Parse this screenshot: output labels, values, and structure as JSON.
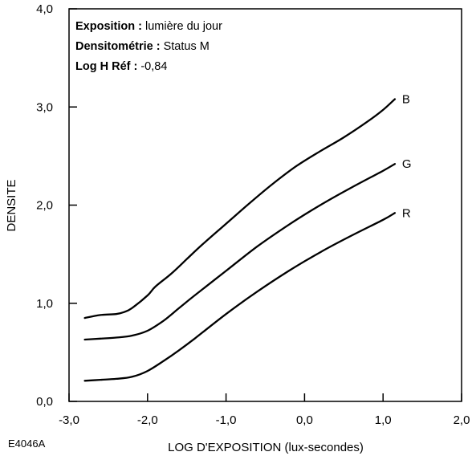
{
  "chart_data": {
    "type": "line",
    "xlabel": "LOG D'EXPOSITION (lux-secondes)",
    "ylabel": "DENSITE",
    "xlim": [
      -3.0,
      2.0
    ],
    "ylim": [
      0.0,
      4.0
    ],
    "x_ticks": [
      -3.0,
      -2.0,
      -1.0,
      0.0,
      1.0,
      2.0
    ],
    "y_ticks": [
      0.0,
      1.0,
      2.0,
      3.0,
      4.0
    ],
    "x_tick_labels": [
      "-3,0",
      "-2,0",
      "-1,0",
      "0,0",
      "1,0",
      "2,0"
    ],
    "y_tick_labels": [
      "0,0",
      "1,0",
      "2,0",
      "3,0",
      "4,0"
    ],
    "grid": false,
    "legend": "none",
    "annotations": [
      {
        "key": "Exposition :",
        "value": " lumière du jour"
      },
      {
        "key": "Densitométrie :",
        "value": " Status M"
      },
      {
        "key": "Log H Réf :",
        "value": " -0,84"
      }
    ],
    "figure_code": "E4046A",
    "series": [
      {
        "name": "B",
        "x": [
          -2.8,
          -2.6,
          -2.4,
          -2.3,
          -2.2,
          -2.0,
          -1.9,
          -1.7,
          -1.5,
          -1.3,
          -1.0,
          -0.7,
          -0.4,
          -0.1,
          0.2,
          0.5,
          0.8,
          1.0,
          1.15
        ],
        "y": [
          0.85,
          0.88,
          0.89,
          0.91,
          0.95,
          1.08,
          1.17,
          1.3,
          1.45,
          1.6,
          1.81,
          2.02,
          2.22,
          2.4,
          2.55,
          2.69,
          2.85,
          2.97,
          3.08
        ]
      },
      {
        "name": "G",
        "x": [
          -2.8,
          -2.6,
          -2.4,
          -2.2,
          -2.0,
          -1.8,
          -1.6,
          -1.4,
          -1.0,
          -0.6,
          -0.2,
          0.2,
          0.6,
          1.0,
          1.15
        ],
        "y": [
          0.63,
          0.64,
          0.65,
          0.67,
          0.72,
          0.82,
          0.95,
          1.08,
          1.33,
          1.58,
          1.8,
          2.0,
          2.18,
          2.35,
          2.42
        ]
      },
      {
        "name": "R",
        "x": [
          -2.8,
          -2.6,
          -2.4,
          -2.2,
          -2.0,
          -1.8,
          -1.6,
          -1.4,
          -1.0,
          -0.6,
          -0.2,
          0.2,
          0.6,
          1.0,
          1.15
        ],
        "y": [
          0.21,
          0.22,
          0.23,
          0.25,
          0.31,
          0.41,
          0.52,
          0.64,
          0.89,
          1.12,
          1.33,
          1.52,
          1.69,
          1.85,
          1.92
        ]
      }
    ]
  }
}
